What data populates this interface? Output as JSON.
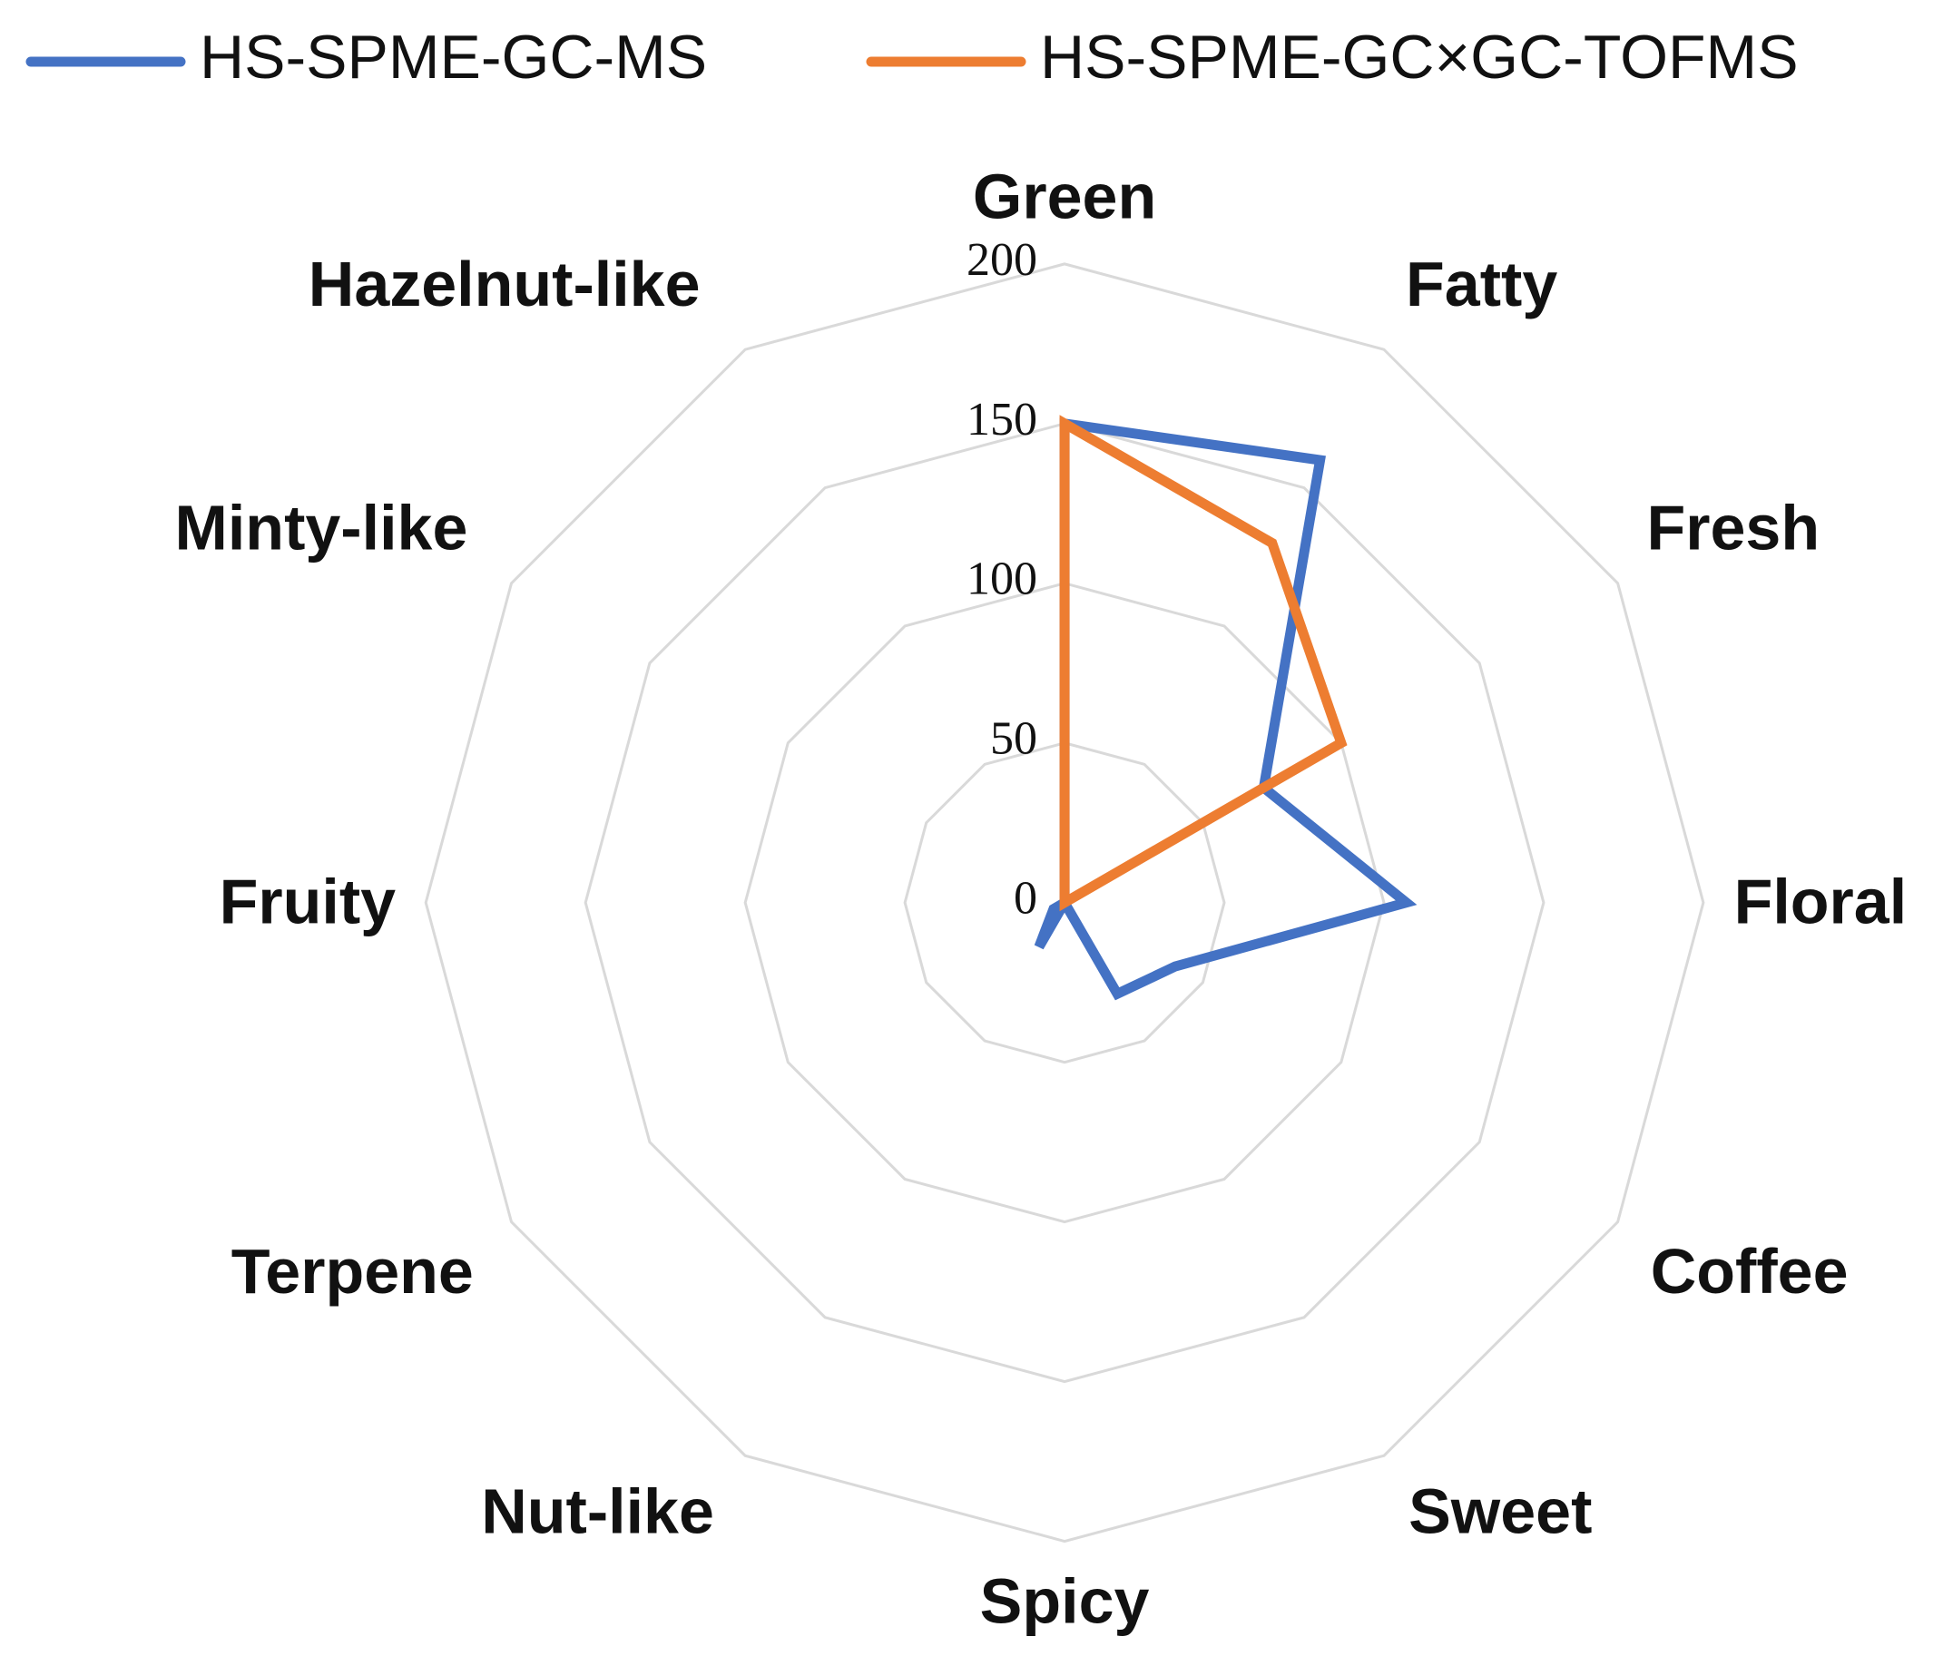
{
  "chart_data": {
    "type": "radar",
    "categories": [
      "Green",
      "Fatty",
      "Fresh",
      "Floral",
      "Coffee",
      "Sweet",
      "Spicy",
      "Nut-like",
      "Terpene",
      "Fruity",
      "Minty-like",
      "Hazelnut-like"
    ],
    "series": [
      {
        "name": "HS-SPME-GC-MS",
        "color": "#4472c4",
        "values": [
          150,
          160,
          72,
          107,
          40,
          33,
          0,
          16,
          4,
          0,
          0,
          0
        ]
      },
      {
        "name": "HS-SPME-GC×GC-TOFMS",
        "color": "#ed7d31",
        "values": [
          150,
          130,
          100,
          0,
          0,
          0,
          0,
          0,
          0,
          0,
          0,
          0
        ]
      }
    ],
    "ylim": [
      0,
      200
    ],
    "yticks": [
      0,
      50,
      100,
      150,
      200
    ],
    "grid": true,
    "grid_color": "#d9d9d9"
  }
}
